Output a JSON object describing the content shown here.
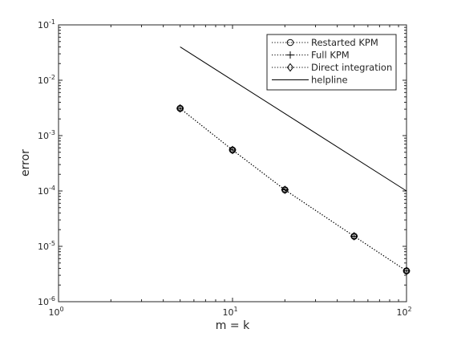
{
  "chart_data": {
    "type": "line",
    "title": "",
    "xlabel": "m = k",
    "ylabel": "error",
    "xscale": "log",
    "yscale": "log",
    "xlim": [
      1,
      100
    ],
    "ylim": [
      1e-06,
      0.1
    ],
    "grid": false,
    "legend_position": "top-right",
    "x_ticks": [
      {
        "value": 1,
        "base": "10",
        "exp": "0"
      },
      {
        "value": 10,
        "base": "10",
        "exp": "1"
      },
      {
        "value": 100,
        "base": "10",
        "exp": "2"
      }
    ],
    "y_ticks": [
      {
        "value": 1e-06,
        "base": "10",
        "exp": "-6"
      },
      {
        "value": 1e-05,
        "base": "10",
        "exp": "-5"
      },
      {
        "value": 0.0001,
        "base": "10",
        "exp": "-4"
      },
      {
        "value": 0.001,
        "base": "10",
        "exp": "-3"
      },
      {
        "value": 0.01,
        "base": "10",
        "exp": "-2"
      },
      {
        "value": 0.1,
        "base": "10",
        "exp": "-1"
      }
    ],
    "series": [
      {
        "name": "Restarted KPM",
        "marker": "circle",
        "line": "dotted",
        "color": "#000000",
        "x": [
          5,
          10,
          20,
          50,
          100
        ],
        "y": [
          0.0031,
          0.00055,
          0.000105,
          1.52e-05,
          3.6e-06
        ]
      },
      {
        "name": "Full KPM",
        "marker": "plus",
        "line": "dotted",
        "color": "#000000",
        "x": [
          5,
          10,
          20,
          50,
          100
        ],
        "y": [
          0.0031,
          0.00055,
          0.000105,
          1.52e-05,
          3.6e-06
        ]
      },
      {
        "name": "Direct integration",
        "marker": "diamond",
        "line": "dotted",
        "color": "#000000",
        "x": [
          5,
          10,
          20,
          50,
          100
        ],
        "y": [
          0.0031,
          0.00055,
          0.000105,
          1.52e-05,
          3.6e-06
        ]
      },
      {
        "name": "helpline",
        "marker": "none",
        "line": "solid",
        "color": "#000000",
        "x": [
          5,
          100
        ],
        "y": [
          0.04,
          0.0001
        ]
      }
    ]
  }
}
